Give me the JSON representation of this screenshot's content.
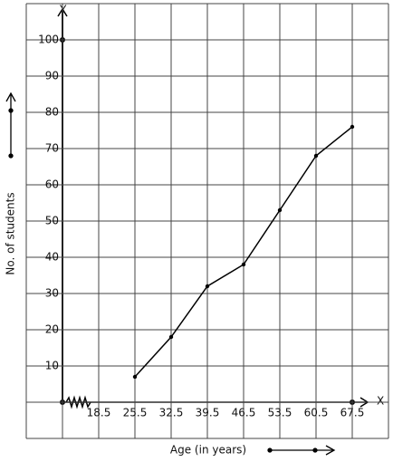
{
  "chart_data": {
    "type": "line",
    "x_label": "Age (in years)",
    "y_label": "No. of students",
    "x_axis_letter": "X",
    "y_axis_letter": "Y",
    "x": [
      25.5,
      32.5,
      39.5,
      46.5,
      53.5,
      60.5,
      67.5
    ],
    "values": [
      7,
      18,
      32,
      38,
      53,
      68,
      76
    ],
    "color": "#000000",
    "xlim": [
      11.5,
      67.5
    ],
    "xticks": [
      18.5,
      25.5,
      32.5,
      39.5,
      46.5,
      53.5,
      60.5,
      67.5
    ],
    "ylim": [
      0,
      100
    ],
    "yticks": [
      10,
      20,
      30,
      40,
      50,
      60,
      70,
      80,
      90,
      100
    ],
    "grid": true
  }
}
